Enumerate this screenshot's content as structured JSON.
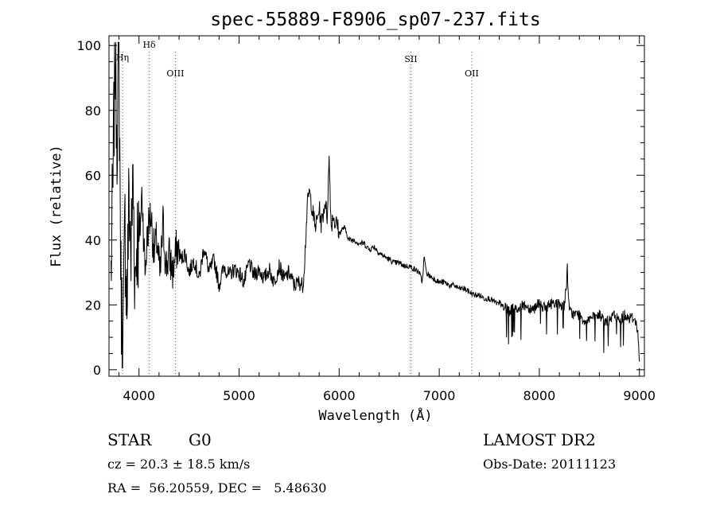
{
  "chart_data": {
    "type": "line",
    "title": "spec-55889-F8906_sp07-237.fits",
    "xlabel": "Wavelength (Å)",
    "ylabel": "Flux (relative)",
    "xlim": [
      3700,
      9050
    ],
    "ylim": [
      -2,
      103
    ],
    "x_ticks": [
      4000,
      5000,
      6000,
      7000,
      8000,
      9000
    ],
    "y_ticks": [
      0,
      20,
      40,
      60,
      80,
      100
    ],
    "grid": false,
    "line_color": "#000000",
    "marker_color": "#cc2222",
    "series": [
      {
        "x": [
          3720,
          3740,
          3760,
          3780,
          3800,
          3820,
          3840,
          3860,
          3880,
          3900,
          3920,
          3940,
          3960,
          3980,
          4000,
          4030,
          4060,
          4090,
          4120,
          4150,
          4180,
          4210,
          4240,
          4270,
          4300,
          4340,
          4380,
          4420,
          4460,
          4500,
          4550,
          4600,
          4650,
          4700,
          4750,
          4800,
          4850,
          4900,
          4950,
          5000,
          5050,
          5100,
          5150,
          5200,
          5250,
          5300,
          5350,
          5400,
          5450,
          5500,
          5550,
          5600,
          5640,
          5660,
          5680,
          5700,
          5720,
          5740,
          5760,
          5780,
          5800,
          5820,
          5840,
          5860,
          5880,
          5900,
          5920,
          5940,
          5960,
          5980,
          6000,
          6050,
          6100,
          6150,
          6200,
          6250,
          6300,
          6350,
          6400,
          6450,
          6500,
          6550,
          6600,
          6650,
          6700,
          6750,
          6800,
          6830,
          6850,
          6870,
          6900,
          6950,
          7000,
          7050,
          7100,
          7150,
          7200,
          7250,
          7300,
          7350,
          7400,
          7450,
          7500,
          7550,
          7600,
          7650,
          7700,
          7750,
          7800,
          7850,
          7900,
          7950,
          8000,
          8050,
          8100,
          8150,
          8200,
          8250,
          8270,
          8280,
          8290,
          8300,
          8350,
          8400,
          8450,
          8500,
          8550,
          8600,
          8650,
          8700,
          8750,
          8800,
          8850,
          8900,
          8950,
          8980,
          9000
        ],
        "y": [
          30,
          55,
          100,
          75,
          95,
          25,
          5,
          45,
          20,
          55,
          35,
          60,
          28,
          42,
          38,
          55,
          30,
          44,
          48,
          36,
          40,
          28,
          45,
          32,
          35,
          30,
          38,
          34,
          36,
          30,
          34,
          28,
          38,
          30,
          34,
          26,
          32,
          29,
          31,
          30,
          27,
          33,
          29,
          31,
          28,
          31,
          27,
          32,
          28,
          30,
          26,
          27,
          26,
          37,
          50,
          55,
          52,
          48,
          44,
          46,
          50,
          45,
          48,
          52,
          47,
          65,
          44,
          48,
          45,
          45,
          42,
          44,
          40,
          40,
          39,
          39,
          37,
          38,
          36,
          35,
          34,
          33,
          33,
          32,
          32,
          31,
          30,
          27,
          35,
          30,
          29,
          28,
          27,
          27,
          26,
          26,
          25,
          25,
          24,
          23,
          23,
          22,
          22,
          21,
          20,
          19,
          18,
          19,
          19,
          20,
          19,
          19,
          21,
          19,
          20,
          21,
          20,
          20,
          25,
          32,
          22,
          18,
          17,
          17,
          15,
          16,
          16,
          17,
          15,
          15,
          17,
          15,
          17,
          16,
          16,
          13,
          3
        ]
      }
    ],
    "line_markers": [
      {
        "label": "Hη",
        "x": 3835
      },
      {
        "label": "Hδ",
        "x": 4102
      },
      {
        "label": "OIII",
        "x": 4363
      },
      {
        "label": "SII",
        "x": 6717
      },
      {
        "label": "OII",
        "x": 7325
      }
    ]
  },
  "info": {
    "object_class": "STAR",
    "subclass": "G0",
    "survey": "LAMOST DR2",
    "redshift": "cz = 20.3 ± 18.5 km/s",
    "obs_date": "Obs-Date: 20111123",
    "coords": "RA =  56.20559, DEC =   5.48630"
  }
}
